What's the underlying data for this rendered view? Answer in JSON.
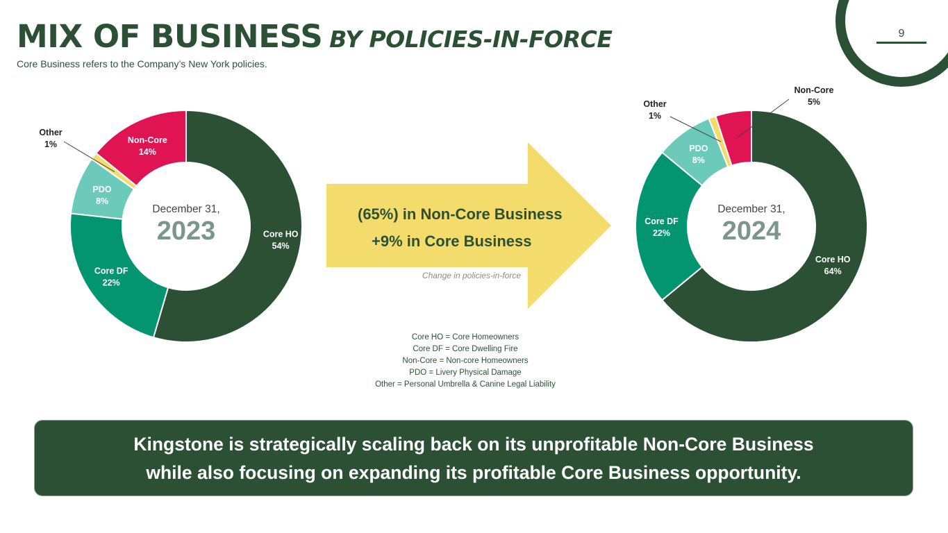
{
  "header": {
    "title_main": "MIX OF BUSINESS",
    "title_accent": "BY POLICIES-IN-FORCE",
    "subtitle": "Core Business refers to the Company’s New York policies.",
    "page_number": "9"
  },
  "colors": {
    "dark_green": "#2b5034",
    "core_ho": "#2b5034",
    "core_df": "#039570",
    "pdo": "#6ccaba",
    "other": "#f4dc6c",
    "non_core": "#e01452",
    "arrow": "#f4dc6c",
    "center_text": "#7a978a"
  },
  "chart_data": [
    {
      "type": "pie",
      "variant": "donut",
      "center_label": "December 31,",
      "center_year": "2023",
      "categories": [
        "Core HO",
        "Core DF",
        "PDO",
        "Other",
        "Non-Core"
      ],
      "values": [
        54,
        22,
        8,
        1,
        14
      ],
      "value_labels": [
        "54%",
        "22%",
        "8%",
        "1%",
        "14%"
      ]
    },
    {
      "type": "pie",
      "variant": "donut",
      "center_label": "December 31,",
      "center_year": "2024",
      "categories": [
        "Core HO",
        "Core DF",
        "PDO",
        "Other",
        "Non-Core"
      ],
      "values": [
        64,
        22,
        8,
        1,
        5
      ],
      "value_labels": [
        "64%",
        "22%",
        "8%",
        "1%",
        "5%"
      ]
    }
  ],
  "arrow": {
    "line1": "(65%) in Non-Core Business",
    "line2": "+9% in Core Business",
    "note": "Change in policies-in-force"
  },
  "legend": [
    "Core HO = Core Homeowners",
    "Core DF = Core Dwelling Fire",
    "Non-Core = Non-core Homeowners",
    "PDO = Livery Physical Damage",
    "Other = Personal Umbrella & Canine Legal Liability"
  ],
  "banner": {
    "line1": "Kingstone is strategically scaling back on its unprofitable Non-Core Business",
    "line2": "while also focusing on expanding its profitable Core Business opportunity."
  }
}
